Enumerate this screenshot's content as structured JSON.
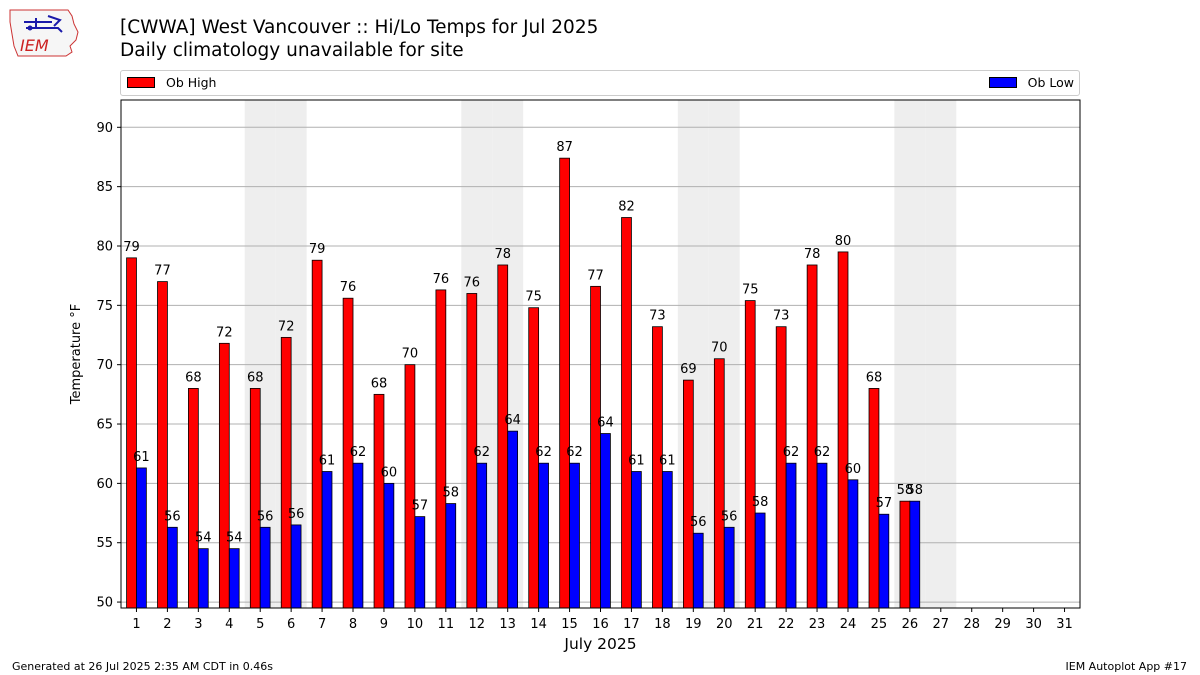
{
  "header": {
    "title_line1": "[CWWA] West Vancouver :: Hi/Lo Temps for Jul 2025",
    "title_line2": "Daily climatology unavailable for site",
    "logo_text": "IEM"
  },
  "footer": {
    "generated": "Generated at 26 Jul 2025 2:35 AM CDT in 0.46s",
    "app": "IEM Autoplot App #17"
  },
  "colors": {
    "high": "#ff0000",
    "low": "#0000ff",
    "weekend_band": "#eeeeee",
    "grid": "#b0b0b0"
  },
  "chart_data": {
    "type": "bar",
    "xlabel": "July 2025",
    "ylabel": "Temperature °F",
    "ylim": [
      49.5,
      92.3
    ],
    "yticks": [
      50,
      55,
      60,
      65,
      70,
      75,
      80,
      85,
      90
    ],
    "grid": "horizontal",
    "legend_placement": "top",
    "categories": [
      "1",
      "2",
      "3",
      "4",
      "5",
      "6",
      "7",
      "8",
      "9",
      "10",
      "11",
      "12",
      "13",
      "14",
      "15",
      "16",
      "17",
      "18",
      "19",
      "20",
      "21",
      "22",
      "23",
      "24",
      "25",
      "26",
      "27",
      "28",
      "29",
      "30",
      "31"
    ],
    "weekend_days": [
      5,
      6,
      12,
      13,
      19,
      20,
      26,
      27
    ],
    "series": [
      {
        "name": "Ob High",
        "values": [
          79.0,
          77.0,
          68.0,
          71.8,
          68.0,
          72.3,
          78.8,
          75.6,
          67.5,
          70.0,
          76.3,
          76.0,
          78.4,
          74.8,
          87.4,
          76.6,
          82.4,
          73.2,
          68.7,
          70.5,
          75.4,
          73.2,
          78.4,
          79.5,
          68.0,
          58.5,
          null,
          null,
          null,
          null,
          null
        ],
        "labels": [
          "79",
          "77",
          "68",
          "72",
          "68",
          "72",
          "79",
          "76",
          "68",
          "70",
          "76",
          "76",
          "78",
          "75",
          "87",
          "77",
          "82",
          "73",
          "69",
          "70",
          "75",
          "73",
          "78",
          "80",
          "68",
          "58",
          "",
          "",
          "",
          "",
          ""
        ]
      },
      {
        "name": "Ob Low",
        "values": [
          61.3,
          56.3,
          54.5,
          54.5,
          56.3,
          56.5,
          61.0,
          61.7,
          60.0,
          57.2,
          58.3,
          61.7,
          64.4,
          61.7,
          61.7,
          64.2,
          61.0,
          61.0,
          55.8,
          56.3,
          57.5,
          61.7,
          61.7,
          60.3,
          57.4,
          58.5,
          null,
          null,
          null,
          null,
          null
        ],
        "labels": [
          "61",
          "56",
          "54",
          "54",
          "56",
          "56",
          "61",
          "62",
          "60",
          "57",
          "58",
          "62",
          "64",
          "62",
          "62",
          "64",
          "61",
          "61",
          "56",
          "56",
          "58",
          "62",
          "62",
          "60",
          "57",
          "58",
          "",
          "",
          "",
          "",
          ""
        ]
      }
    ]
  }
}
